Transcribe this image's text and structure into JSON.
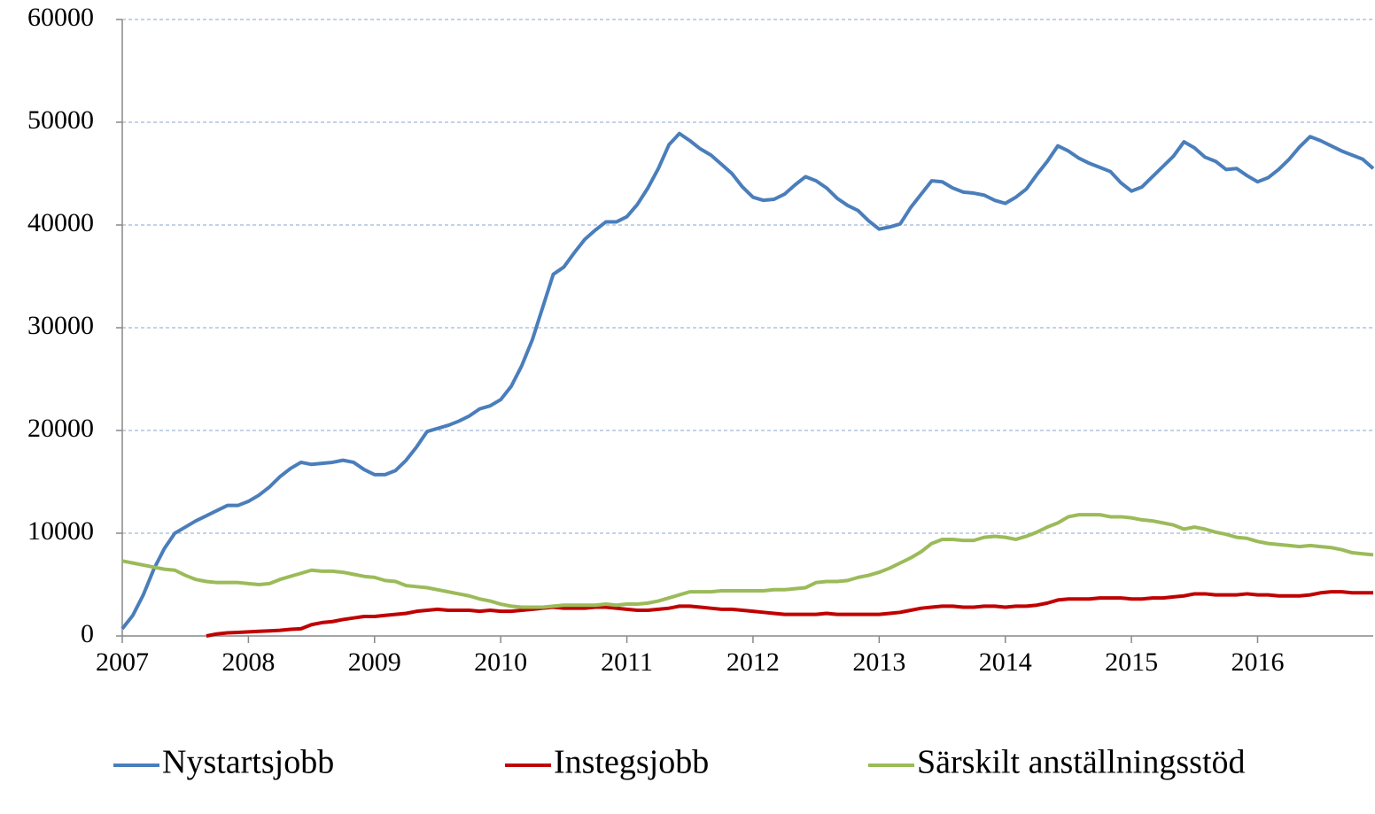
{
  "chart_data": {
    "type": "line",
    "categories": [
      "2007",
      null,
      null,
      null,
      null,
      null,
      null,
      null,
      null,
      null,
      null,
      null,
      "2008",
      null,
      null,
      null,
      null,
      null,
      null,
      null,
      null,
      null,
      null,
      null,
      "2009",
      null,
      null,
      null,
      null,
      null,
      null,
      null,
      null,
      null,
      null,
      null,
      "2010",
      null,
      null,
      null,
      null,
      null,
      null,
      null,
      null,
      null,
      null,
      null,
      "2011",
      null,
      null,
      null,
      null,
      null,
      null,
      null,
      null,
      null,
      null,
      null,
      "2012",
      null,
      null,
      null,
      null,
      null,
      null,
      null,
      null,
      null,
      null,
      null,
      "2013",
      null,
      null,
      null,
      null,
      null,
      null,
      null,
      null,
      null,
      null,
      null,
      "2014",
      null,
      null,
      null,
      null,
      null,
      null,
      null,
      null,
      null,
      null,
      null,
      "2015",
      null,
      null,
      null,
      null,
      null,
      null,
      null,
      null,
      null,
      null,
      null,
      "2016",
      null,
      null,
      null,
      null,
      null,
      null,
      null,
      null,
      null,
      null,
      null
    ],
    "series": [
      {
        "name": "Nystartsjobb",
        "color": "#4a7ebb",
        "values": [
          700,
          2000,
          4000,
          6500,
          8500,
          10000,
          10600,
          11200,
          11700,
          12200,
          12700,
          12700,
          13100,
          13700,
          14500,
          15500,
          16300,
          16900,
          16700,
          16800,
          16900,
          17100,
          16900,
          16200,
          15700,
          15700,
          16100,
          17100,
          18400,
          19900,
          20200,
          20500,
          20900,
          21400,
          22100,
          22400,
          23000,
          24300,
          26300,
          28800,
          32000,
          35200,
          35900,
          37300,
          38600,
          39500,
          40300,
          40300,
          40800,
          42000,
          43600,
          45500,
          47800,
          48900,
          48200,
          47400,
          46800,
          45900,
          45000,
          43700,
          42700,
          42400,
          42500,
          43000,
          43900,
          44700,
          44300,
          43600,
          42600,
          41900,
          41400,
          40400,
          39600,
          39800,
          40100,
          41700,
          43000,
          44300,
          44200,
          43600,
          43200,
          43100,
          42900,
          42400,
          42100,
          42700,
          43500,
          44900,
          46200,
          47700,
          47200,
          46500,
          46000,
          45600,
          45200,
          44100,
          43300,
          43700,
          44700,
          45700,
          46700,
          48100,
          47500,
          46600,
          46200,
          45400,
          45500,
          44800,
          44200,
          44600,
          45400,
          46400,
          47600,
          48600,
          48200,
          47700,
          47200,
          46800,
          46400,
          45500
        ]
      },
      {
        "name": "Instegsjobb",
        "color": "#c00000",
        "values": [
          null,
          null,
          null,
          null,
          null,
          null,
          null,
          null,
          0,
          200,
          300,
          350,
          400,
          450,
          500,
          550,
          650,
          700,
          1100,
          1300,
          1400,
          1600,
          1750,
          1900,
          1900,
          2000,
          2100,
          2200,
          2400,
          2500,
          2600,
          2500,
          2500,
          2500,
          2400,
          2500,
          2400,
          2400,
          2500,
          2600,
          2700,
          2800,
          2700,
          2700,
          2700,
          2800,
          2800,
          2700,
          2600,
          2500,
          2500,
          2600,
          2700,
          2900,
          2900,
          2800,
          2700,
          2600,
          2600,
          2500,
          2400,
          2300,
          2200,
          2100,
          2100,
          2100,
          2100,
          2200,
          2100,
          2100,
          2100,
          2100,
          2100,
          2200,
          2300,
          2500,
          2700,
          2800,
          2900,
          2900,
          2800,
          2800,
          2900,
          2900,
          2800,
          2900,
          2900,
          3000,
          3200,
          3500,
          3600,
          3600,
          3600,
          3700,
          3700,
          3700,
          3600,
          3600,
          3700,
          3700,
          3800,
          3900,
          4100,
          4100,
          4000,
          4000,
          4000,
          4100,
          4000,
          4000,
          3900,
          3900,
          3900,
          4000,
          4200,
          4300,
          4300,
          4200,
          4200,
          4200
        ]
      },
      {
        "name": "Särskilt anställningsstöd",
        "color": "#9bbb59",
        "values": [
          7300,
          7100,
          6900,
          6700,
          6500,
          6400,
          5900,
          5500,
          5300,
          5200,
          5200,
          5200,
          5100,
          5000,
          5100,
          5500,
          5800,
          6100,
          6400,
          6300,
          6300,
          6200,
          6000,
          5800,
          5700,
          5400,
          5300,
          4900,
          4800,
          4700,
          4500,
          4300,
          4100,
          3900,
          3600,
          3400,
          3100,
          2900,
          2800,
          2800,
          2800,
          2900,
          3000,
          3000,
          3000,
          3000,
          3100,
          3000,
          3100,
          3100,
          3200,
          3400,
          3700,
          4000,
          4300,
          4300,
          4300,
          4400,
          4400,
          4400,
          4400,
          4400,
          4500,
          4500,
          4600,
          4700,
          5200,
          5300,
          5300,
          5400,
          5700,
          5900,
          6200,
          6600,
          7100,
          7600,
          8200,
          9000,
          9400,
          9400,
          9300,
          9300,
          9600,
          9700,
          9600,
          9400,
          9700,
          10100,
          10600,
          11000,
          11600,
          11800,
          11800,
          11800,
          11600,
          11600,
          11500,
          11300,
          11200,
          11000,
          10800,
          10400,
          10600,
          10400,
          10100,
          9900,
          9600,
          9500,
          9200,
          9000,
          8900,
          8800,
          8700,
          8800,
          8700,
          8600,
          8400,
          8100,
          8000,
          7900
        ]
      }
    ],
    "ylim": [
      0,
      60000
    ],
    "yticks": [
      0,
      10000,
      20000,
      30000,
      40000,
      50000,
      60000
    ],
    "grid": true,
    "legend": "bottom"
  }
}
